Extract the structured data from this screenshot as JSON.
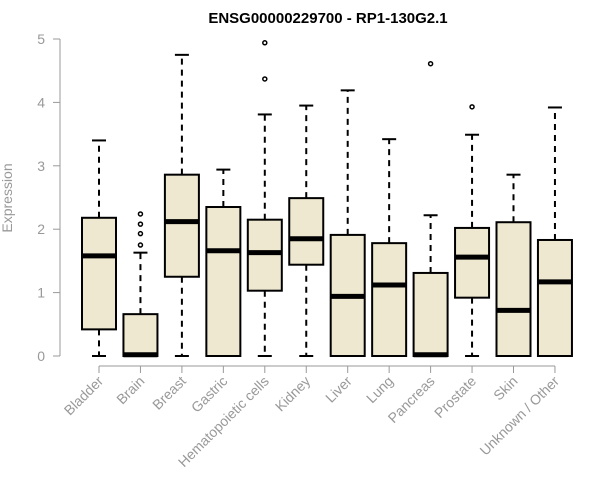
{
  "chart_data": {
    "type": "boxplot",
    "title": "ENSG00000229700 - RP1-130G2.1",
    "xlabel": "",
    "ylabel": "Expression",
    "ylim": [
      0,
      5
    ],
    "yticks": [
      0,
      1,
      2,
      3,
      4,
      5
    ],
    "categories": [
      "Bladder",
      "Brain",
      "Breast",
      "Gastric",
      "Hematopoietic cells",
      "Kidney",
      "Liver",
      "Lung",
      "Pancreas",
      "Prostate",
      "Skin",
      "Unknown / Other"
    ],
    "boxes": [
      {
        "name": "Bladder",
        "whisker_low": 0.0,
        "q1": 0.42,
        "median": 1.58,
        "q3": 2.18,
        "whisker_high": 3.4,
        "outliers": []
      },
      {
        "name": "Brain",
        "whisker_low": 0.0,
        "q1": 0.0,
        "median": 0.02,
        "q3": 0.66,
        "whisker_high": 1.63,
        "outliers": [
          1.75,
          1.93,
          2.08,
          2.24
        ]
      },
      {
        "name": "Breast",
        "whisker_low": 0.0,
        "q1": 1.25,
        "median": 2.12,
        "q3": 2.86,
        "whisker_high": 4.75,
        "outliers": []
      },
      {
        "name": "Gastric",
        "whisker_low": 0.0,
        "q1": 0.0,
        "median": 1.66,
        "q3": 2.35,
        "whisker_high": 2.94,
        "outliers": []
      },
      {
        "name": "Hematopoietic cells",
        "whisker_low": 0.0,
        "q1": 1.03,
        "median": 1.63,
        "q3": 2.15,
        "whisker_high": 3.81,
        "outliers": [
          4.37,
          4.94
        ]
      },
      {
        "name": "Kidney",
        "whisker_low": 0.0,
        "q1": 1.44,
        "median": 1.85,
        "q3": 2.49,
        "whisker_high": 3.95,
        "outliers": []
      },
      {
        "name": "Liver",
        "whisker_low": 0.0,
        "q1": 0.0,
        "median": 0.94,
        "q3": 1.91,
        "whisker_high": 4.19,
        "outliers": []
      },
      {
        "name": "Lung",
        "whisker_low": 0.0,
        "q1": 0.0,
        "median": 1.12,
        "q3": 1.78,
        "whisker_high": 3.42,
        "outliers": []
      },
      {
        "name": "Pancreas",
        "whisker_low": 0.0,
        "q1": 0.0,
        "median": 0.02,
        "q3": 1.31,
        "whisker_high": 2.22,
        "outliers": [
          4.61
        ]
      },
      {
        "name": "Prostate",
        "whisker_low": 0.0,
        "q1": 0.92,
        "median": 1.56,
        "q3": 2.02,
        "whisker_high": 3.49,
        "outliers": [
          3.93
        ]
      },
      {
        "name": "Skin",
        "whisker_low": 0.0,
        "q1": 0.0,
        "median": 0.72,
        "q3": 2.11,
        "whisker_high": 2.86,
        "outliers": []
      },
      {
        "name": "Unknown / Other",
        "whisker_low": 0.0,
        "q1": 0.0,
        "median": 1.17,
        "q3": 1.83,
        "whisker_high": 3.92,
        "outliers": []
      }
    ],
    "colors": {
      "box_fill": "#efe8d0",
      "box_stroke": "#000000",
      "axis": "#999999",
      "text": "#999999",
      "title": "#000000"
    }
  }
}
